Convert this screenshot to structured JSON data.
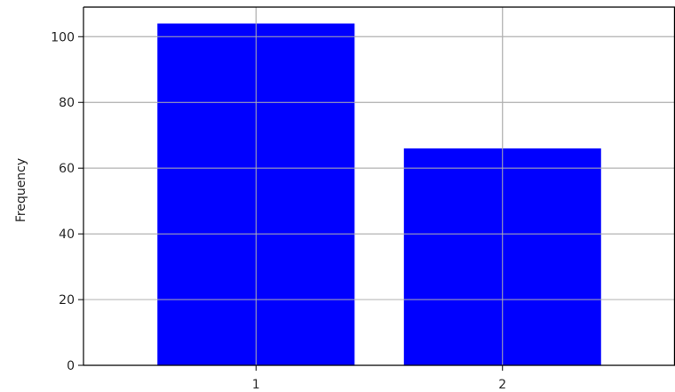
{
  "chart_data": {
    "type": "bar",
    "title": "",
    "xlabel": "",
    "ylabel": "Frequency",
    "categories": [
      "1",
      "2"
    ],
    "values": [
      104,
      66
    ],
    "ylim": [
      0,
      109
    ],
    "yticks": [
      0,
      20,
      40,
      60,
      80,
      100
    ],
    "grid": true,
    "bar_color": "#0000ff",
    "grid_color": "#b0b0b0",
    "axis_color": "#000000"
  }
}
